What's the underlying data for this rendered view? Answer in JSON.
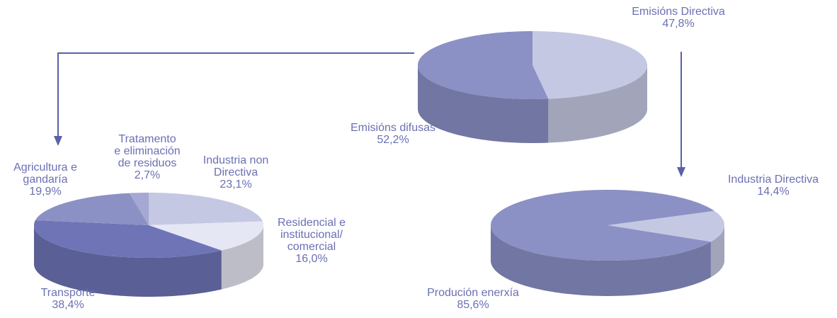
{
  "chart_data": [
    {
      "type": "pie",
      "categories": [
        "Emisións Directiva",
        "Emisións difusas"
      ],
      "values": [
        47.8,
        52.2
      ],
      "value_labels": [
        "47,8%",
        "52,2%"
      ],
      "colors": [
        "#c5c8e3",
        "#8b90c5"
      ]
    },
    {
      "type": "pie",
      "categories": [
        "Industria non\nDirectiva",
        "Residencial e\ninstitucional/\ncomercial",
        "Transporte",
        "Agricultura e\ngandaría",
        "Tratamento\ne eliminación\nde residuos"
      ],
      "values": [
        23.1,
        16.0,
        38.4,
        19.9,
        2.7
      ],
      "value_labels": [
        "23,1%",
        "16,0%",
        "38,4%",
        "19,9%",
        "2,7%"
      ],
      "colors": [
        "#c5c8e3",
        "#e6e7f4",
        "#6e74b6",
        "#8b90c5",
        "#a4a8d2"
      ]
    },
    {
      "type": "pie",
      "categories": [
        "Industria Directiva",
        "Produción enerxía"
      ],
      "values": [
        14.4,
        85.6
      ],
      "value_labels": [
        "14,4%",
        "85,6%"
      ],
      "colors": [
        "#c5c8e3",
        "#8b90c5"
      ]
    }
  ]
}
